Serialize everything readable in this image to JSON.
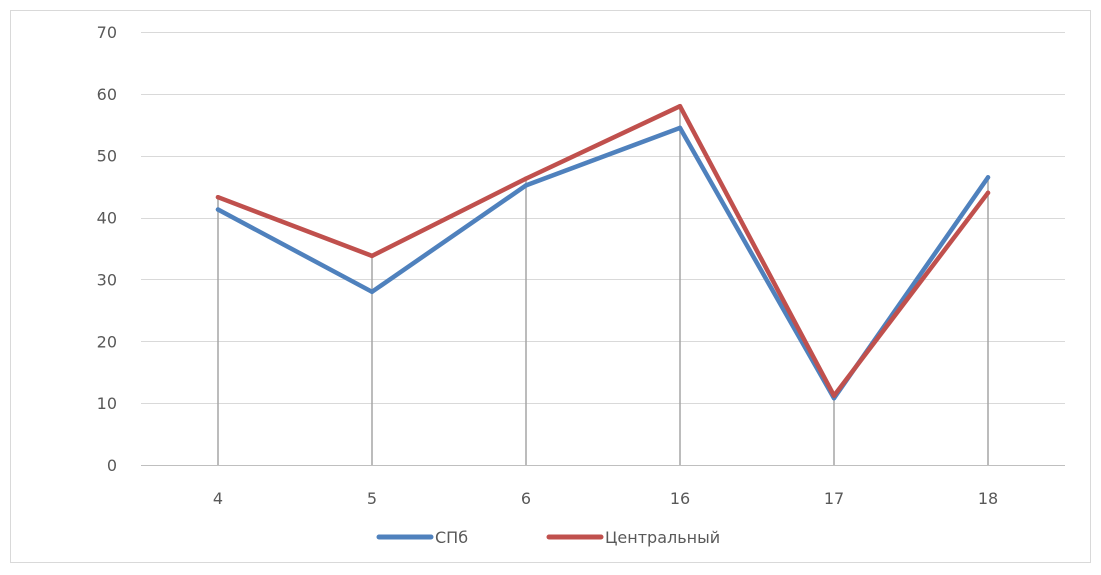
{
  "chart_data": {
    "type": "line",
    "title": "",
    "xlabel": "",
    "ylabel": "",
    "categories": [
      "4",
      "5",
      "6",
      "16",
      "17",
      "18"
    ],
    "ylim": [
      0,
      70
    ],
    "yticks": [
      "0",
      "10",
      "20",
      "30",
      "40",
      "50",
      "60",
      "70"
    ],
    "grid": true,
    "drop_lines": true,
    "legend_position": "bottom",
    "series": [
      {
        "name": "СПб",
        "color": "#4F81BD",
        "values": [
          41.3,
          28.0,
          45.2,
          54.5,
          10.8,
          46.5
        ]
      },
      {
        "name": "Центральный",
        "color": "#C0504D",
        "values": [
          43.3,
          33.8,
          46.3,
          58.0,
          11.2,
          44.0
        ]
      }
    ]
  }
}
